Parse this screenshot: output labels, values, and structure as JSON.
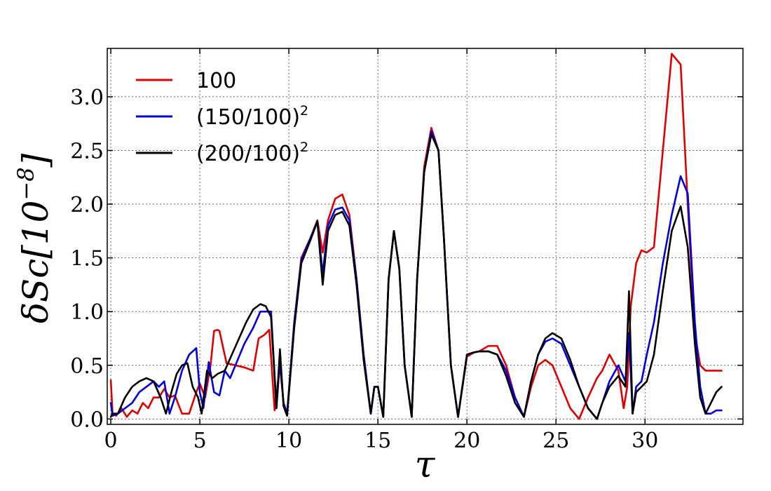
{
  "chart_data": {
    "type": "line",
    "title": "",
    "xlabel": "τ",
    "ylabel_prefix": "δSc[10",
    "ylabel_exp": "−8",
    "ylabel_suffix": "]",
    "xlim": [
      -0.2,
      35.5
    ],
    "ylim": [
      -0.05,
      3.45
    ],
    "xticks": [
      0,
      5,
      10,
      15,
      20,
      25,
      30
    ],
    "xtick_labels": [
      "0",
      "5",
      "10",
      "15",
      "20",
      "25",
      "30"
    ],
    "yticks": [
      0.0,
      0.5,
      1.0,
      1.5,
      2.0,
      2.5,
      3.0
    ],
    "ytick_labels": [
      "0.0",
      "0.5",
      "1.0",
      "1.5",
      "2.0",
      "2.5",
      "3.0"
    ],
    "grid": true,
    "legend_position": "top-left",
    "series": [
      {
        "name": "100",
        "name_base": "100",
        "name_exp": "",
        "color": "#e00000",
        "x": [
          0,
          0.1,
          0.3,
          0.6,
          0.9,
          1.2,
          1.5,
          1.8,
          2.1,
          2.4,
          2.7,
          3.0,
          3.3,
          3.6,
          4.0,
          4.4,
          4.8,
          5.0,
          5.3,
          5.6,
          5.8,
          6.0,
          6.1,
          6.5,
          7.0,
          7.5,
          8.0,
          8.3,
          8.6,
          8.9,
          9.2,
          9.5,
          9.7,
          9.9,
          10.3,
          10.7,
          11.2,
          11.6,
          11.9,
          12.2,
          12.6,
          13.0,
          13.4,
          13.8,
          14.2,
          14.6,
          14.8,
          15.0,
          15.3,
          15.6,
          15.9,
          16.2,
          16.5,
          16.9,
          17.2,
          17.6,
          18.0,
          18.4,
          18.7,
          19.1,
          19.5,
          20.0,
          20.4,
          20.7,
          21.2,
          21.7,
          22.2,
          22.7,
          23.2,
          23.6,
          24.0,
          24.4,
          24.8,
          25.3,
          25.8,
          26.3,
          26.8,
          27.3,
          27.6,
          28.0,
          28.5,
          28.8,
          29.0,
          29.2,
          29.5,
          29.8,
          30.1,
          30.5,
          31.0,
          31.5,
          32.0,
          32.4,
          32.8,
          33.1,
          33.4,
          33.7,
          34.0,
          34.3
        ],
        "values": [
          0.36,
          0.05,
          0.03,
          0.1,
          0.02,
          0.08,
          0.05,
          0.15,
          0.1,
          0.2,
          0.2,
          0.28,
          0.2,
          0.22,
          0.05,
          0.05,
          0.25,
          0.33,
          0.2,
          0.5,
          0.82,
          0.83,
          0.82,
          0.52,
          0.5,
          0.48,
          0.45,
          0.75,
          0.78,
          0.83,
          0.08,
          0.5,
          0.15,
          0.05,
          0.9,
          1.5,
          1.68,
          1.85,
          1.55,
          1.85,
          2.05,
          2.09,
          1.9,
          1.3,
          0.6,
          0.05,
          0.3,
          0.3,
          0.02,
          1.3,
          1.75,
          1.4,
          0.5,
          0.02,
          1.3,
          2.35,
          2.71,
          2.5,
          1.7,
          0.5,
          0.02,
          0.58,
          0.62,
          0.63,
          0.68,
          0.68,
          0.5,
          0.2,
          0.02,
          0.3,
          0.5,
          0.55,
          0.5,
          0.3,
          0.1,
          0.0,
          0.2,
          0.38,
          0.45,
          0.6,
          0.45,
          0.1,
          0.3,
          1.05,
          1.45,
          1.57,
          1.55,
          1.6,
          2.5,
          3.4,
          3.3,
          2.0,
          0.8,
          0.5,
          0.45,
          0.45,
          0.45,
          0.45
        ]
      },
      {
        "name": "(150/100)",
        "name_base": "(150/100)",
        "name_exp": "2",
        "color": "#0000e0",
        "x": [
          0,
          0.1,
          0.4,
          0.8,
          1.2,
          1.6,
          2.0,
          2.4,
          2.7,
          3.0,
          3.3,
          3.6,
          4.0,
          4.4,
          4.8,
          5.0,
          5.2,
          5.5,
          5.8,
          6.1,
          6.4,
          6.7,
          7.0,
          7.5,
          8.0,
          8.4,
          8.7,
          9.0,
          9.3,
          9.5,
          9.7,
          9.9,
          10.3,
          10.7,
          11.2,
          11.6,
          11.9,
          12.2,
          12.6,
          13.0,
          13.4,
          13.8,
          14.2,
          14.6,
          14.8,
          15.0,
          15.3,
          15.6,
          15.9,
          16.2,
          16.5,
          16.9,
          17.2,
          17.6,
          18.0,
          18.4,
          18.7,
          19.1,
          19.5,
          20.0,
          20.4,
          20.7,
          21.2,
          21.7,
          22.2,
          22.7,
          23.2,
          23.6,
          24.0,
          24.4,
          24.8,
          25.3,
          25.8,
          26.3,
          26.8,
          27.3,
          27.6,
          28.0,
          28.5,
          28.9,
          29.1,
          29.3,
          29.5,
          29.8,
          30.1,
          30.5,
          31.0,
          31.5,
          32.0,
          32.4,
          32.8,
          33.1,
          33.4,
          33.7,
          34.0,
          34.3
        ],
        "values": [
          0.15,
          0.03,
          0.05,
          0.1,
          0.15,
          0.25,
          0.3,
          0.35,
          0.3,
          0.35,
          0.05,
          0.2,
          0.45,
          0.6,
          0.66,
          0.25,
          0.1,
          0.53,
          0.25,
          0.22,
          0.45,
          0.38,
          0.5,
          0.7,
          0.85,
          1.0,
          1.0,
          1.0,
          0.1,
          0.55,
          0.15,
          0.05,
          0.9,
          1.48,
          1.68,
          1.84,
          1.35,
          1.8,
          1.95,
          1.97,
          1.85,
          1.3,
          0.6,
          0.05,
          0.3,
          0.3,
          0.02,
          1.3,
          1.75,
          1.4,
          0.5,
          0.02,
          1.3,
          2.3,
          2.68,
          2.5,
          1.7,
          0.5,
          0.02,
          0.6,
          0.62,
          0.63,
          0.63,
          0.6,
          0.45,
          0.2,
          0.02,
          0.35,
          0.6,
          0.72,
          0.75,
          0.7,
          0.5,
          0.3,
          0.1,
          0.0,
          0.15,
          0.35,
          0.5,
          0.35,
          0.8,
          0.05,
          0.3,
          0.35,
          0.6,
          0.9,
          1.45,
          1.9,
          2.26,
          2.1,
          0.9,
          0.3,
          0.05,
          0.05,
          0.08,
          0.08
        ]
      },
      {
        "name": "(200/100)",
        "name_base": "(200/100)",
        "name_exp": "2",
        "color": "#000000",
        "x": [
          0,
          0.1,
          0.4,
          0.8,
          1.2,
          1.6,
          2.0,
          2.4,
          2.8,
          3.1,
          3.4,
          3.7,
          4.0,
          4.3,
          4.6,
          4.9,
          5.1,
          5.4,
          5.7,
          6.0,
          6.4,
          6.8,
          7.2,
          7.6,
          8.0,
          8.4,
          8.7,
          9.0,
          9.3,
          9.5,
          9.7,
          9.9,
          10.3,
          10.7,
          11.2,
          11.6,
          11.9,
          12.2,
          12.6,
          13.0,
          13.4,
          13.8,
          14.2,
          14.6,
          14.8,
          15.0,
          15.3,
          15.6,
          15.9,
          16.2,
          16.5,
          16.9,
          17.2,
          17.6,
          18.0,
          18.4,
          18.7,
          19.1,
          19.5,
          20.0,
          20.4,
          20.7,
          21.2,
          21.7,
          22.2,
          22.7,
          23.2,
          23.6,
          24.0,
          24.4,
          24.8,
          25.3,
          25.8,
          26.3,
          26.8,
          27.3,
          27.6,
          28.0,
          28.5,
          28.9,
          29.1,
          29.3,
          29.5,
          29.8,
          30.1,
          30.5,
          31.0,
          31.5,
          32.0,
          32.4,
          32.8,
          33.1,
          33.4,
          33.7,
          34.0,
          34.3
        ],
        "values": [
          0.02,
          0.05,
          0.05,
          0.2,
          0.3,
          0.35,
          0.38,
          0.35,
          0.2,
          0.05,
          0.25,
          0.42,
          0.5,
          0.52,
          0.3,
          0.2,
          0.05,
          0.45,
          0.38,
          0.42,
          0.45,
          0.6,
          0.75,
          0.9,
          1.02,
          1.07,
          1.05,
          0.95,
          0.1,
          0.65,
          0.12,
          0.03,
          0.85,
          1.45,
          1.66,
          1.84,
          1.25,
          1.75,
          1.9,
          1.93,
          1.8,
          1.25,
          0.55,
          0.05,
          0.3,
          0.3,
          0.02,
          1.3,
          1.75,
          1.4,
          0.5,
          0.02,
          1.3,
          2.3,
          2.65,
          2.5,
          1.7,
          0.5,
          0.02,
          0.6,
          0.62,
          0.63,
          0.63,
          0.6,
          0.4,
          0.15,
          0.02,
          0.35,
          0.6,
          0.75,
          0.8,
          0.75,
          0.55,
          0.3,
          0.1,
          0.0,
          0.15,
          0.3,
          0.4,
          0.3,
          1.19,
          0.05,
          0.25,
          0.3,
          0.35,
          0.6,
          1.2,
          1.75,
          1.98,
          1.6,
          0.7,
          0.2,
          0.05,
          0.15,
          0.25,
          0.3
        ]
      }
    ]
  }
}
